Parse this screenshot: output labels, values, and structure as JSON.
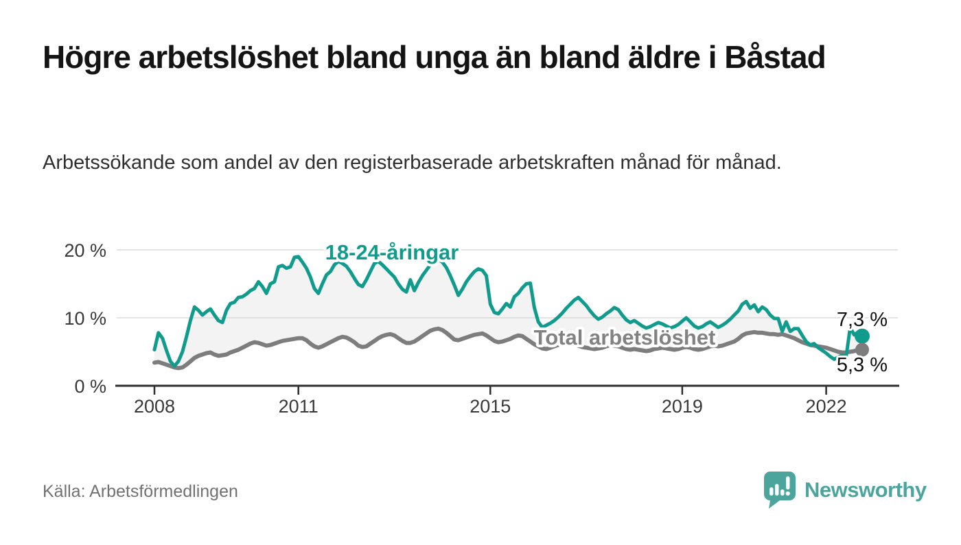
{
  "header": {
    "title": "Högre arbetslöshet bland unga än bland äldre i Båstad",
    "subtitle": "Arbetssökande som andel av den registerbaserade arbetskraften månad för månad."
  },
  "chart_data": {
    "type": "line",
    "x_start": "2008-01",
    "x_end": "2022-10",
    "x_frequency": "monthly",
    "x_tick_labels": [
      "2008",
      "2011",
      "2015",
      "2019",
      "2022"
    ],
    "y_tick_labels": [
      "20 %",
      "10 %",
      "0 %"
    ],
    "ylim": [
      0,
      22
    ],
    "unit": "%",
    "grid": true,
    "area_between_series_fill": "#f3f3f3",
    "series": [
      {
        "name": "18-24-åringar",
        "color": "#119b8c",
        "end_label": "7,3 %",
        "end_value": 7.3,
        "values": [
          5.3,
          7.8,
          7.0,
          5.2,
          3.6,
          2.9,
          3.6,
          5.0,
          7.2,
          9.6,
          11.6,
          11.1,
          10.4,
          10.9,
          11.3,
          10.4,
          9.6,
          9.3,
          11.1,
          12.1,
          12.3,
          13.0,
          13.1,
          13.5,
          14.0,
          14.3,
          15.3,
          14.6,
          13.6,
          15.0,
          15.3,
          17.5,
          17.7,
          17.3,
          17.5,
          18.9,
          19.0,
          18.2,
          17.3,
          16.0,
          14.3,
          13.6,
          15.0,
          16.3,
          16.8,
          17.8,
          18.3,
          18.0,
          17.6,
          16.8,
          15.8,
          14.9,
          14.6,
          15.6,
          16.8,
          18.0,
          18.3,
          17.8,
          17.2,
          16.6,
          16.0,
          15.0,
          14.2,
          13.8,
          15.6,
          14.0,
          15.2,
          16.2,
          17.0,
          17.8,
          18.4,
          18.6,
          18.2,
          17.4,
          16.2,
          14.8,
          13.3,
          14.2,
          15.3,
          16.1,
          16.8,
          17.2,
          17.0,
          16.2,
          12.0,
          10.8,
          10.6,
          11.3,
          12.1,
          11.6,
          13.1,
          13.6,
          14.4,
          15.0,
          15.1,
          11.5,
          9.4,
          8.6,
          8.9,
          9.2,
          9.6,
          10.1,
          10.7,
          11.4,
          12.0,
          12.6,
          13.0,
          12.4,
          11.8,
          11.0,
          10.3,
          9.8,
          10.1,
          10.6,
          11.0,
          11.5,
          11.2,
          10.4,
          9.7,
          9.3,
          9.6,
          9.2,
          8.8,
          8.5,
          8.7,
          9.0,
          9.3,
          9.1,
          8.8,
          8.5,
          8.7,
          9.0,
          9.5,
          10.0,
          9.4,
          8.8,
          8.5,
          8.7,
          9.1,
          9.4,
          9.0,
          8.6,
          8.9,
          9.3,
          9.8,
          10.4,
          11.0,
          12.0,
          12.4,
          11.4,
          11.9,
          10.9,
          11.6,
          11.2,
          10.4,
          9.9,
          9.9,
          8.0,
          9.4,
          8.0,
          8.4,
          8.4,
          7.4,
          6.5,
          6.0,
          6.2,
          5.6,
          5.2,
          4.8,
          4.3,
          3.9,
          4.2,
          4.5,
          4.3,
          8.6,
          7.5,
          7.9,
          7.3
        ]
      },
      {
        "name": "Total arbetslöshet",
        "color": "#7d7d7d",
        "end_label": "5,3 %",
        "end_value": 5.3,
        "values": [
          3.4,
          3.5,
          3.3,
          3.1,
          2.9,
          2.7,
          2.6,
          2.7,
          3.1,
          3.6,
          4.1,
          4.4,
          4.6,
          4.8,
          4.9,
          4.6,
          4.4,
          4.5,
          4.6,
          4.9,
          5.1,
          5.3,
          5.6,
          5.9,
          6.2,
          6.4,
          6.3,
          6.1,
          5.9,
          6.0,
          6.2,
          6.4,
          6.6,
          6.7,
          6.8,
          6.9,
          7.0,
          7.0,
          6.7,
          6.2,
          5.8,
          5.6,
          5.8,
          6.1,
          6.4,
          6.7,
          7.0,
          7.2,
          7.1,
          6.8,
          6.4,
          5.9,
          5.7,
          5.8,
          6.2,
          6.6,
          7.0,
          7.3,
          7.5,
          7.6,
          7.4,
          7.0,
          6.6,
          6.3,
          6.3,
          6.5,
          6.9,
          7.3,
          7.7,
          8.1,
          8.3,
          8.4,
          8.2,
          7.8,
          7.3,
          6.8,
          6.7,
          6.9,
          7.1,
          7.3,
          7.5,
          7.6,
          7.7,
          7.4,
          7.0,
          6.6,
          6.4,
          6.5,
          6.7,
          6.9,
          7.2,
          7.4,
          7.3,
          6.9,
          6.5,
          6.1,
          5.8,
          5.5,
          5.4,
          5.6,
          5.8,
          6.0,
          6.2,
          6.3,
          6.2,
          6.1,
          5.9,
          5.7,
          5.6,
          5.5,
          5.4,
          5.5,
          5.6,
          5.8,
          6.0,
          5.9,
          5.8,
          5.6,
          5.4,
          5.3,
          5.4,
          5.3,
          5.2,
          5.1,
          5.2,
          5.4,
          5.5,
          5.6,
          5.5,
          5.4,
          5.3,
          5.4,
          5.6,
          5.7,
          5.6,
          5.4,
          5.3,
          5.4,
          5.6,
          5.8,
          5.9,
          5.8,
          5.9,
          6.1,
          6.3,
          6.5,
          6.9,
          7.4,
          7.7,
          7.8,
          7.9,
          7.8,
          7.8,
          7.7,
          7.6,
          7.6,
          7.5,
          7.6,
          7.4,
          7.2,
          7.0,
          6.7,
          6.4,
          6.2,
          6.0,
          5.9,
          5.8,
          5.7,
          5.6,
          5.4,
          5.2,
          5.0,
          4.9,
          4.9,
          5.0,
          5.1,
          5.3,
          5.3
        ]
      }
    ]
  },
  "footer": {
    "source": "Källa: Arbetsförmedlingen",
    "brand": "Newsworthy"
  },
  "colors": {
    "accent_teal": "#119b8c",
    "line_gray": "#7d7d7d",
    "brand_teal": "#4ba59d",
    "grid_gray": "#dadada",
    "axis_dark": "#2e2e2e"
  }
}
